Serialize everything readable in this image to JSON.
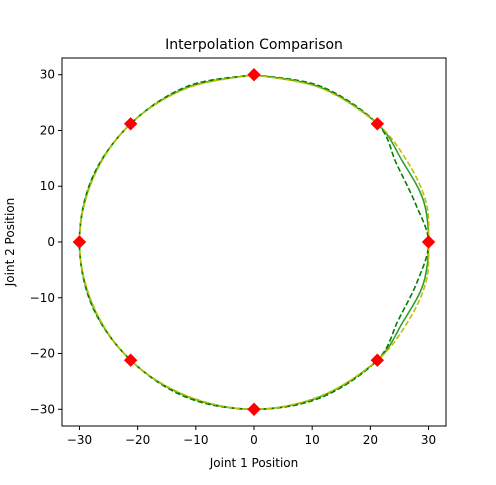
{
  "chart_data": {
    "type": "line",
    "title": "Interpolation Comparison",
    "xlabel": "Joint 1 Position",
    "ylabel": "Joint 2 Position",
    "xlim": [
      -33,
      33
    ],
    "ylim": [
      -33,
      33
    ],
    "xticks": [
      -30,
      -20,
      -10,
      0,
      10,
      20,
      30
    ],
    "yticks": [
      -30,
      -20,
      -10,
      0,
      10,
      20,
      30
    ],
    "xtick_labels": [
      "−30",
      "−20",
      "−10",
      "0",
      "10",
      "20",
      "30"
    ],
    "ytick_labels": [
      "−30",
      "−20",
      "−10",
      "0",
      "10",
      "20",
      "30"
    ],
    "grid": false,
    "legend": null,
    "waypoints": {
      "color": "#ff0000",
      "marker": "diamond",
      "x": [
        0,
        21.2,
        30,
        21.2,
        0,
        -21.2,
        -30,
        -21.2
      ],
      "y": [
        30,
        21.2,
        0,
        -21.2,
        -30,
        -21.2,
        0,
        21.2
      ]
    },
    "series": [
      {
        "style": "solid",
        "color": "#2ca02c",
        "points": [
          [
            0,
            30
          ],
          [
            11.5,
            27.7
          ],
          [
            21.2,
            21.2
          ],
          [
            25.5,
            14.5
          ],
          [
            29.1,
            7.5
          ],
          [
            30,
            0
          ],
          [
            29.1,
            -7.5
          ],
          [
            25.5,
            -14.5
          ],
          [
            21.2,
            -21.2
          ],
          [
            11.5,
            -27.7
          ],
          [
            0,
            -30
          ],
          [
            -11.5,
            -27.7
          ],
          [
            -21.2,
            -21.2
          ],
          [
            -27.7,
            -11.5
          ],
          [
            -30,
            0
          ],
          [
            -27.7,
            11.5
          ],
          [
            -21.2,
            21.2
          ],
          [
            -11.5,
            27.7
          ],
          [
            0,
            30
          ]
        ]
      },
      {
        "style": "dashed",
        "color": "#008000",
        "points": [
          [
            0,
            30
          ],
          [
            11.5,
            27.9
          ],
          [
            21.2,
            21.2
          ],
          [
            24.5,
            14.0
          ],
          [
            27.7,
            7.0
          ],
          [
            30,
            0
          ],
          [
            28.1,
            -7.0
          ],
          [
            24.8,
            -14.0
          ],
          [
            21.2,
            -21.2
          ],
          [
            11.5,
            -27.9
          ],
          [
            0,
            -30
          ],
          [
            -11.5,
            -27.9
          ],
          [
            -21.2,
            -21.2
          ],
          [
            -27.8,
            -11.5
          ],
          [
            -30,
            0
          ],
          [
            -27.8,
            11.5
          ],
          [
            -21.2,
            21.2
          ],
          [
            -11.5,
            27.9
          ],
          [
            0,
            30
          ]
        ]
      },
      {
        "style": "dashed",
        "color": "#bfbf00",
        "points": [
          [
            0,
            30
          ],
          [
            11.5,
            27.6
          ],
          [
            21.2,
            21.2
          ],
          [
            26.5,
            14.2
          ],
          [
            29.6,
            7.0
          ],
          [
            30,
            0
          ],
          [
            29.6,
            -7.0
          ],
          [
            26.5,
            -14.2
          ],
          [
            21.2,
            -21.2
          ],
          [
            11.5,
            -27.6
          ],
          [
            0,
            -30
          ],
          [
            -11.5,
            -27.6
          ],
          [
            -21.2,
            -21.2
          ],
          [
            -27.6,
            -11.5
          ],
          [
            -30,
            0
          ],
          [
            -27.6,
            11.5
          ],
          [
            -21.2,
            21.2
          ],
          [
            -11.5,
            27.6
          ],
          [
            0,
            30
          ]
        ]
      }
    ]
  }
}
